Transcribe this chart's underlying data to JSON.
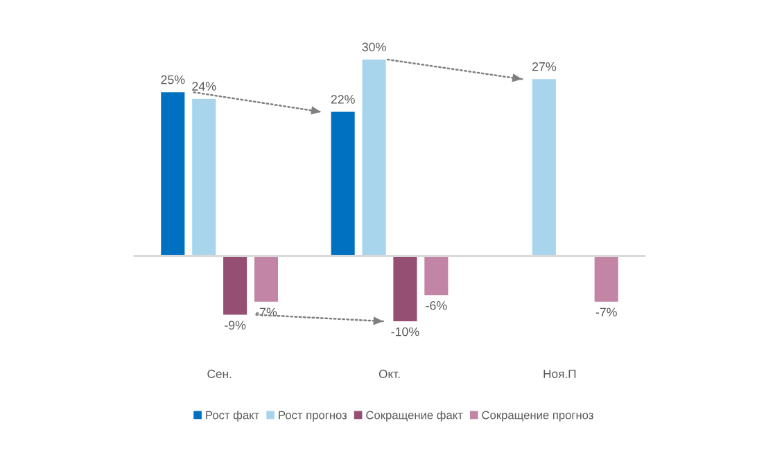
{
  "chart_data": {
    "type": "bar",
    "categories": [
      "Сен.",
      "Окт.",
      "Ноя.П"
    ],
    "series": [
      {
        "name": "Рост факт",
        "color": "#0070c0",
        "values": [
          25,
          22,
          null
        ],
        "value_labels": [
          "25%",
          "22%",
          null
        ]
      },
      {
        "name": "Рост прогноз",
        "color": "#a9d5ec",
        "values": [
          24,
          30,
          27
        ],
        "value_labels": [
          "24%",
          "30%",
          "27%"
        ]
      },
      {
        "name": "Сокращение факт",
        "color": "#954f72",
        "values": [
          -9,
          -10,
          null
        ],
        "value_labels": [
          "-9%",
          "-10%",
          null
        ]
      },
      {
        "name": "Сокращение прогноз",
        "color": "#c285a6",
        "values": [
          -7,
          -6,
          -7
        ],
        "value_labels": [
          "-7%",
          "-6%",
          "-7%"
        ]
      }
    ],
    "tick_labels": "x",
    "legend": "bottom"
  }
}
